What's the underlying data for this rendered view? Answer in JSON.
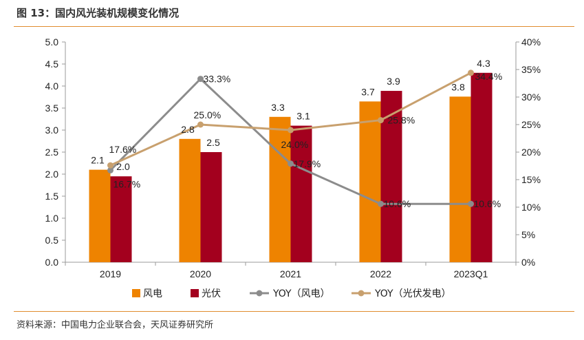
{
  "header": {
    "title": "图 13：国内风光装机规模变化情况"
  },
  "footer": {
    "source": "资料来源：中国电力企业联合会，天风证券研究所"
  },
  "chart_data": {
    "type": "bar",
    "categories": [
      "2019",
      "2020",
      "2021",
      "2022",
      "2023Q1"
    ],
    "series": [
      {
        "name": "风电",
        "kind": "bar",
        "axis": "left",
        "values": [
          2.1,
          2.8,
          3.3,
          3.65,
          3.76
        ],
        "labels": [
          "2.1",
          "2.8",
          "3.3",
          "3.7",
          "3.8"
        ],
        "color": "#EE8300"
      },
      {
        "name": "光伏",
        "kind": "bar",
        "axis": "left",
        "values": [
          1.95,
          2.5,
          3.1,
          3.89,
          4.3
        ],
        "labels": [
          "2.0",
          "2.5",
          "3.1",
          "3.9",
          "4.3"
        ],
        "color": "#A3001E"
      },
      {
        "name": "YOY（风电）",
        "kind": "line",
        "axis": "right",
        "values": [
          16.7,
          33.3,
          17.9,
          10.6,
          10.6
        ],
        "labels": [
          "16.7%",
          "33.3%",
          "17.9%",
          "10.6%",
          "10.6%"
        ],
        "color": "#8C8C8C"
      },
      {
        "name": "YOY（光伏发电）",
        "kind": "line",
        "axis": "right",
        "values": [
          17.6,
          25.0,
          24.0,
          25.8,
          34.4
        ],
        "labels": [
          "17.6%",
          "25.0%",
          "24.0%",
          "25.8%",
          "34.4%"
        ],
        "color": "#C8A06E"
      }
    ],
    "y_left": {
      "min": 0,
      "max": 5,
      "step": 0.5,
      "ticks": [
        "0.0",
        "0.5",
        "1.0",
        "1.5",
        "2.0",
        "2.5",
        "3.0",
        "3.5",
        "4.0",
        "4.5",
        "5.0"
      ]
    },
    "y_right": {
      "min": 0,
      "max": 40,
      "step": 5,
      "ticks": [
        "0%",
        "5%",
        "10%",
        "15%",
        "20%",
        "25%",
        "30%",
        "35%",
        "40%"
      ]
    },
    "grid": false,
    "legend": "bottom"
  }
}
